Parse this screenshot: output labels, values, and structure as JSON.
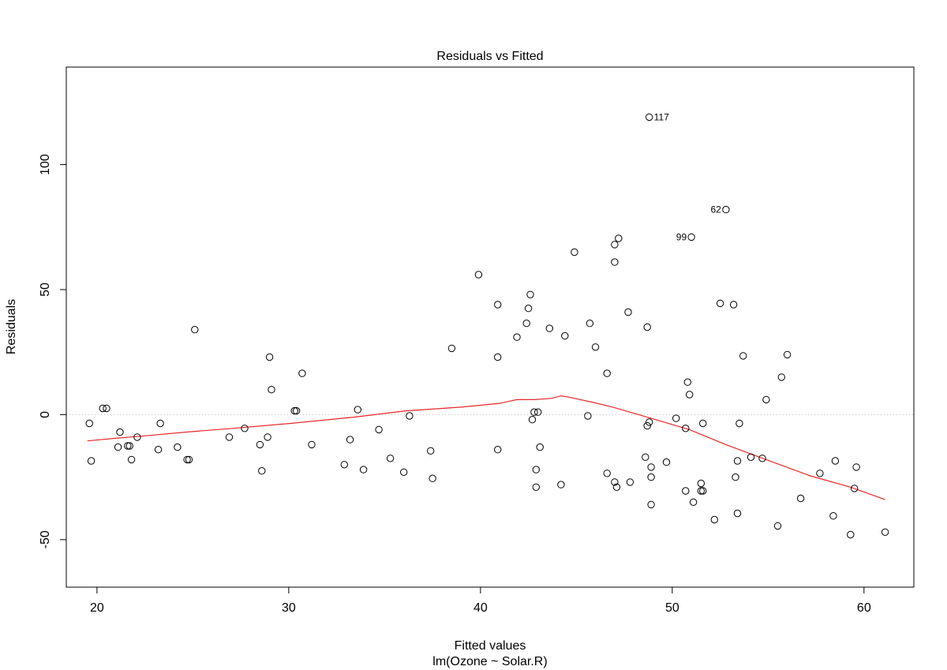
{
  "chart_data": {
    "type": "scatter",
    "title": "Residuals vs Fitted",
    "xlabel": "Fitted values",
    "xsublabel": "lm(Ozone ~ Solar.R)",
    "ylabel": "Residuals",
    "xlim": [
      18.4,
      62.6
    ],
    "ylim": [
      -69,
      139
    ],
    "xticks": [
      20,
      30,
      40,
      50,
      60
    ],
    "yticks": [
      -50,
      0,
      50,
      100
    ],
    "grid": false,
    "reference_line": {
      "y": 0,
      "style": "dotted",
      "color": "#bbbbbb"
    },
    "colors": {
      "points": "#000000",
      "smooth": "#e8272a"
    },
    "points": [
      {
        "x": 19.6,
        "y": -3.5
      },
      {
        "x": 19.7,
        "y": -18.5
      },
      {
        "x": 20.3,
        "y": 2.5
      },
      {
        "x": 20.5,
        "y": 2.5
      },
      {
        "x": 21.1,
        "y": -13
      },
      {
        "x": 21.2,
        "y": -7
      },
      {
        "x": 21.6,
        "y": -12.5
      },
      {
        "x": 21.7,
        "y": -12.5
      },
      {
        "x": 21.8,
        "y": -18
      },
      {
        "x": 22.1,
        "y": -9
      },
      {
        "x": 23.2,
        "y": -14
      },
      {
        "x": 23.3,
        "y": -3.5
      },
      {
        "x": 24.2,
        "y": -13
      },
      {
        "x": 24.7,
        "y": -18
      },
      {
        "x": 24.8,
        "y": -18
      },
      {
        "x": 25.1,
        "y": 34
      },
      {
        "x": 26.9,
        "y": -9
      },
      {
        "x": 27.7,
        "y": -5.5
      },
      {
        "x": 28.5,
        "y": -12
      },
      {
        "x": 28.6,
        "y": -22.5
      },
      {
        "x": 28.9,
        "y": -9
      },
      {
        "x": 29.0,
        "y": 23
      },
      {
        "x": 29.1,
        "y": 10
      },
      {
        "x": 30.3,
        "y": 1.5
      },
      {
        "x": 30.4,
        "y": 1.5
      },
      {
        "x": 30.7,
        "y": 16.5
      },
      {
        "x": 31.2,
        "y": -12
      },
      {
        "x": 32.9,
        "y": -20
      },
      {
        "x": 33.2,
        "y": -10
      },
      {
        "x": 33.6,
        "y": 2
      },
      {
        "x": 33.9,
        "y": -22
      },
      {
        "x": 34.7,
        "y": -6
      },
      {
        "x": 35.3,
        "y": -17.5
      },
      {
        "x": 36.0,
        "y": -23
      },
      {
        "x": 36.3,
        "y": -0.5
      },
      {
        "x": 37.4,
        "y": -14.5
      },
      {
        "x": 37.5,
        "y": -25.5
      },
      {
        "x": 38.5,
        "y": 26.5
      },
      {
        "x": 39.9,
        "y": 56
      },
      {
        "x": 40.9,
        "y": 44
      },
      {
        "x": 40.9,
        "y": 23
      },
      {
        "x": 40.9,
        "y": -14
      },
      {
        "x": 41.9,
        "y": 31
      },
      {
        "x": 42.4,
        "y": 36.5
      },
      {
        "x": 42.5,
        "y": 42.5
      },
      {
        "x": 42.6,
        "y": 48
      },
      {
        "x": 42.7,
        "y": -2
      },
      {
        "x": 42.8,
        "y": 1
      },
      {
        "x": 42.9,
        "y": -22
      },
      {
        "x": 42.9,
        "y": -29
      },
      {
        "x": 43.0,
        "y": 1
      },
      {
        "x": 43.1,
        "y": -13
      },
      {
        "x": 43.6,
        "y": 34.5
      },
      {
        "x": 44.2,
        "y": -28
      },
      {
        "x": 44.4,
        "y": 31.5
      },
      {
        "x": 44.9,
        "y": 65
      },
      {
        "x": 45.6,
        "y": -0.5
      },
      {
        "x": 45.7,
        "y": 36.5
      },
      {
        "x": 46.0,
        "y": 27
      },
      {
        "x": 46.6,
        "y": -23.5
      },
      {
        "x": 46.6,
        "y": 16.5
      },
      {
        "x": 47.0,
        "y": 68
      },
      {
        "x": 47.0,
        "y": 61
      },
      {
        "x": 47.0,
        "y": -27
      },
      {
        "x": 47.1,
        "y": -29
      },
      {
        "x": 47.2,
        "y": 70.5
      },
      {
        "x": 47.7,
        "y": 41
      },
      {
        "x": 47.8,
        "y": -27
      },
      {
        "x": 48.6,
        "y": -17
      },
      {
        "x": 48.7,
        "y": -4.5
      },
      {
        "x": 48.7,
        "y": 35
      },
      {
        "x": 48.8,
        "y": -3
      },
      {
        "x": 48.8,
        "y": 119
      },
      {
        "x": 48.9,
        "y": -21
      },
      {
        "x": 48.9,
        "y": -25
      },
      {
        "x": 48.9,
        "y": -36
      },
      {
        "x": 49.7,
        "y": -19
      },
      {
        "x": 50.2,
        "y": -1.5
      },
      {
        "x": 50.7,
        "y": -5.5
      },
      {
        "x": 50.7,
        "y": -30.5
      },
      {
        "x": 50.8,
        "y": 13
      },
      {
        "x": 50.9,
        "y": 8
      },
      {
        "x": 51.0,
        "y": 71
      },
      {
        "x": 51.1,
        "y": -35
      },
      {
        "x": 51.5,
        "y": -27.5
      },
      {
        "x": 51.5,
        "y": -30.5
      },
      {
        "x": 51.6,
        "y": -3.5
      },
      {
        "x": 51.6,
        "y": -30.5
      },
      {
        "x": 52.2,
        "y": -42
      },
      {
        "x": 52.5,
        "y": 44.5
      },
      {
        "x": 52.8,
        "y": 82
      },
      {
        "x": 53.2,
        "y": 44
      },
      {
        "x": 53.3,
        "y": -25
      },
      {
        "x": 53.4,
        "y": -18.5
      },
      {
        "x": 53.4,
        "y": -39.5
      },
      {
        "x": 53.5,
        "y": -3.5
      },
      {
        "x": 53.7,
        "y": 23.5
      },
      {
        "x": 54.1,
        "y": -17
      },
      {
        "x": 54.7,
        "y": -17.5
      },
      {
        "x": 54.9,
        "y": 6
      },
      {
        "x": 55.5,
        "y": -44.5
      },
      {
        "x": 55.7,
        "y": 15
      },
      {
        "x": 56.0,
        "y": 24
      },
      {
        "x": 56.7,
        "y": -33.5
      },
      {
        "x": 57.7,
        "y": -23.5
      },
      {
        "x": 58.4,
        "y": -40.5
      },
      {
        "x": 58.5,
        "y": -18.5
      },
      {
        "x": 59.3,
        "y": -48
      },
      {
        "x": 59.5,
        "y": -29.5
      },
      {
        "x": 59.6,
        "y": -21
      },
      {
        "x": 61.1,
        "y": -47
      }
    ],
    "labeled_points": [
      {
        "label": "117",
        "x": 48.8,
        "y": 119,
        "side": "right"
      },
      {
        "label": "62",
        "x": 52.8,
        "y": 82,
        "side": "left"
      },
      {
        "label": "99",
        "x": 51.0,
        "y": 71,
        "side": "left"
      }
    ],
    "smooth_line": {
      "x": [
        19.5,
        20.9,
        22.5,
        24.6,
        27.1,
        30.1,
        33.4,
        36.1,
        39.0,
        41.0,
        41.9,
        42.8,
        43.7,
        44.2,
        44.6,
        45.8,
        46.9,
        48.9,
        50.9,
        52.8,
        54.9,
        57.2,
        59.3,
        61.1
      ],
      "y": [
        -10.5,
        -9.5,
        -8.5,
        -7,
        -5.5,
        -3.5,
        -1,
        1.5,
        3,
        4.5,
        6,
        6,
        6.5,
        7.5,
        7,
        5,
        3,
        -1.5,
        -6,
        -12,
        -18,
        -24.5,
        -29,
        -34
      ]
    }
  }
}
